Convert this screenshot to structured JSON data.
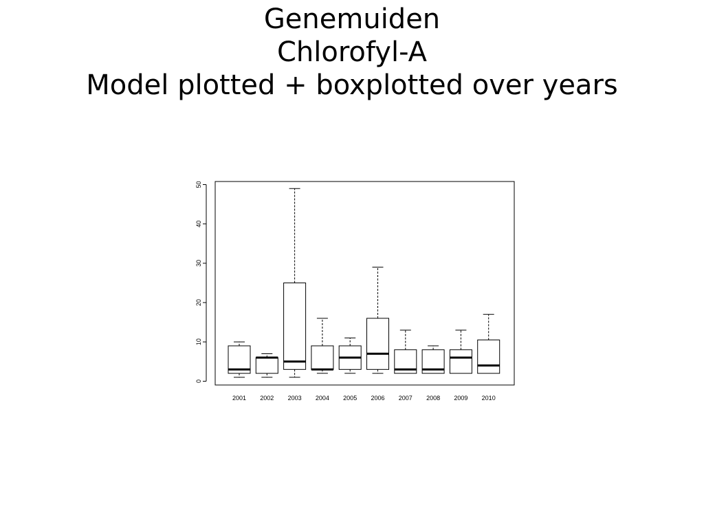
{
  "slide": {
    "title_lines": [
      "Genemuiden",
      "Chlorofyl-A",
      "Model plotted + boxplotted over years"
    ]
  },
  "chart_data": {
    "type": "boxplot",
    "title": "",
    "xlabel": "",
    "ylabel": "",
    "ylim": [
      0,
      50
    ],
    "yticks": [
      0,
      10,
      20,
      30,
      40,
      50
    ],
    "grid": false,
    "categories": [
      "2001",
      "2002",
      "2003",
      "2004",
      "2005",
      "2006",
      "2007",
      "2008",
      "2009",
      "2010"
    ],
    "boxes": [
      {
        "category": "2001",
        "min": 1,
        "q1": 2,
        "median": 3,
        "q3": 9,
        "max": 10
      },
      {
        "category": "2002",
        "min": 1,
        "q1": 2,
        "median": 6,
        "q3": 6,
        "max": 7
      },
      {
        "category": "2003",
        "min": 1,
        "q1": 3,
        "median": 5,
        "q3": 25,
        "max": 49
      },
      {
        "category": "2004",
        "min": 2,
        "q1": 3,
        "median": 3,
        "q3": 9,
        "max": 16
      },
      {
        "category": "2005",
        "min": 2,
        "q1": 3,
        "median": 6,
        "q3": 9,
        "max": 11
      },
      {
        "category": "2006",
        "min": 2,
        "q1": 3,
        "median": 7,
        "q3": 16,
        "max": 29
      },
      {
        "category": "2007",
        "min": 2,
        "q1": 2,
        "median": 3,
        "q3": 8,
        "max": 13
      },
      {
        "category": "2008",
        "min": 2,
        "q1": 2,
        "median": 3,
        "q3": 8,
        "max": 9
      },
      {
        "category": "2009",
        "min": 2,
        "q1": 2,
        "median": 6,
        "q3": 8,
        "max": 13
      },
      {
        "category": "2010",
        "min": 2,
        "q1": 2,
        "median": 4,
        "q3": 10.5,
        "max": 17
      }
    ]
  }
}
